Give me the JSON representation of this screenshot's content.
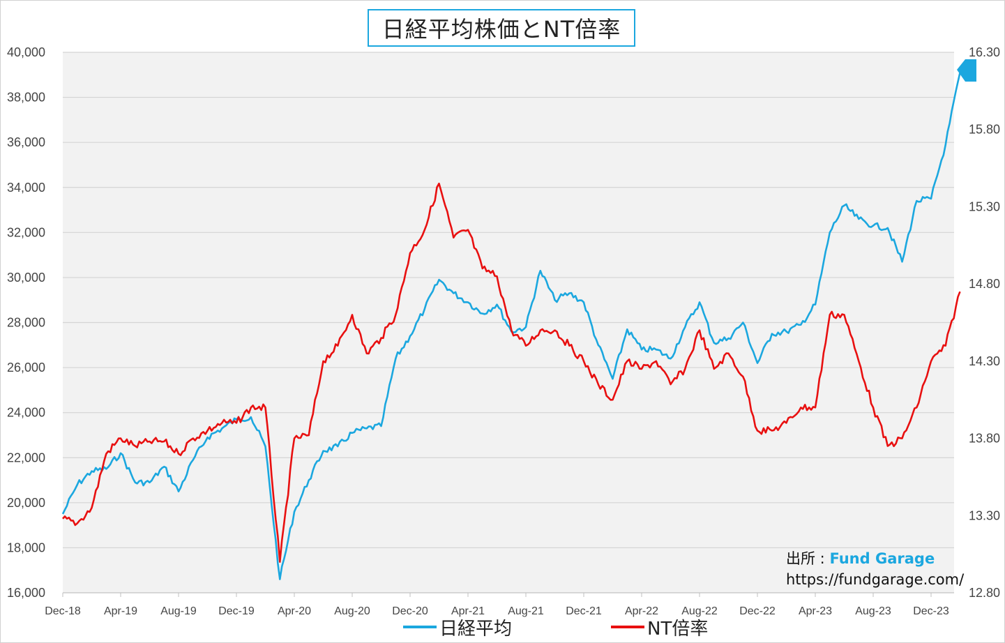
{
  "chart_data": {
    "type": "line",
    "title": "日経平均株価とNT倍率",
    "x_tick_labels": [
      "Dec-18",
      "Apr-19",
      "Aug-19",
      "Dec-19",
      "Apr-20",
      "Aug-20",
      "Dec-20",
      "Apr-21",
      "Aug-21",
      "Dec-21",
      "Apr-22",
      "Aug-22",
      "Dec-22",
      "Apr-23",
      "Aug-23",
      "Dec-23"
    ],
    "y_left": {
      "min": 16000,
      "max": 40000,
      "step": 2000,
      "tick_labels": [
        "16,000",
        "18,000",
        "20,000",
        "22,000",
        "24,000",
        "26,000",
        "28,000",
        "30,000",
        "32,000",
        "34,000",
        "36,000",
        "38,000",
        "40,000"
      ]
    },
    "y_right": {
      "min": 12.8,
      "max": 16.3,
      "step": 0.5,
      "tick_labels": [
        "12.80",
        "13.30",
        "13.80",
        "14.30",
        "14.80",
        "15.30",
        "15.80",
        "16.30"
      ]
    },
    "grid": "horizontal",
    "legend_position": "bottom",
    "series": [
      {
        "name": "日経平均",
        "axis": "left",
        "color": "#1ba7df",
        "x": [
          "2018-12",
          "2019-01",
          "2019-02",
          "2019-03",
          "2019-04",
          "2019-05",
          "2019-06",
          "2019-07",
          "2019-08",
          "2019-09",
          "2019-10",
          "2019-11",
          "2019-12",
          "2020-01",
          "2020-02",
          "2020-03",
          "2020-04",
          "2020-05",
          "2020-06",
          "2020-07",
          "2020-08",
          "2020-09",
          "2020-10",
          "2020-11",
          "2020-12",
          "2021-01",
          "2021-02",
          "2021-03",
          "2021-04",
          "2021-05",
          "2021-06",
          "2021-07",
          "2021-08",
          "2021-09",
          "2021-10",
          "2021-11",
          "2021-12",
          "2022-01",
          "2022-02",
          "2022-03",
          "2022-04",
          "2022-05",
          "2022-06",
          "2022-07",
          "2022-08",
          "2022-09",
          "2022-10",
          "2022-11",
          "2022-12",
          "2023-01",
          "2023-02",
          "2023-03",
          "2023-04",
          "2023-05",
          "2023-06",
          "2023-07",
          "2023-08",
          "2023-09",
          "2023-10",
          "2023-11",
          "2023-12",
          "2024-01",
          "2024-02"
        ],
        "values": [
          19500,
          20800,
          21400,
          21500,
          22200,
          20900,
          20900,
          21600,
          20500,
          21900,
          22900,
          23300,
          23700,
          23800,
          22500,
          16600,
          19600,
          21000,
          22300,
          22500,
          23100,
          23300,
          23400,
          26400,
          27400,
          28600,
          29900,
          29300,
          28900,
          28400,
          28800,
          27600,
          27800,
          30300,
          29000,
          29300,
          28900,
          27000,
          25500,
          27700,
          26800,
          26800,
          26400,
          27800,
          28900,
          27100,
          27300,
          28000,
          26200,
          27500,
          27600,
          27900,
          28800,
          32000,
          33200,
          32600,
          32300,
          32200,
          30700,
          33400,
          33500,
          35900,
          39100
        ]
      },
      {
        "name": "NT倍率",
        "axis": "right",
        "color": "#e81010",
        "x": [
          "2018-12",
          "2019-01",
          "2019-02",
          "2019-03",
          "2019-04",
          "2019-05",
          "2019-06",
          "2019-07",
          "2019-08",
          "2019-09",
          "2019-10",
          "2019-11",
          "2019-12",
          "2020-01",
          "2020-02",
          "2020-03",
          "2020-04",
          "2020-05",
          "2020-06",
          "2020-07",
          "2020-08",
          "2020-09",
          "2020-10",
          "2020-11",
          "2020-12",
          "2021-01",
          "2021-02",
          "2021-03",
          "2021-04",
          "2021-05",
          "2021-06",
          "2021-07",
          "2021-08",
          "2021-09",
          "2021-10",
          "2021-11",
          "2021-12",
          "2022-01",
          "2022-02",
          "2022-03",
          "2022-04",
          "2022-05",
          "2022-06",
          "2022-07",
          "2022-08",
          "2022-09",
          "2022-10",
          "2022-11",
          "2022-12",
          "2023-01",
          "2023-02",
          "2023-03",
          "2023-04",
          "2023-05",
          "2023-06",
          "2023-07",
          "2023-08",
          "2023-09",
          "2023-10",
          "2023-11",
          "2023-12",
          "2024-01",
          "2024-02"
        ],
        "values": [
          13.28,
          13.25,
          13.35,
          13.7,
          13.8,
          13.75,
          13.78,
          13.78,
          13.7,
          13.8,
          13.85,
          13.9,
          13.9,
          14.0,
          14.0,
          13.0,
          13.8,
          13.82,
          14.3,
          14.4,
          14.6,
          14.35,
          14.45,
          14.6,
          15.0,
          15.15,
          15.45,
          15.1,
          15.15,
          14.9,
          14.85,
          14.5,
          14.4,
          14.5,
          14.5,
          14.4,
          14.3,
          14.15,
          14.05,
          14.3,
          14.25,
          14.3,
          14.15,
          14.25,
          14.5,
          14.25,
          14.35,
          14.2,
          13.85,
          13.85,
          13.9,
          14.0,
          14.0,
          14.6,
          14.6,
          14.3,
          14.0,
          13.75,
          13.8,
          14.0,
          14.3,
          14.4,
          14.75
        ]
      }
    ]
  },
  "source": {
    "label": "出所 : ",
    "name": "Fund Garage",
    "url": "https://fundgarage.com/"
  }
}
